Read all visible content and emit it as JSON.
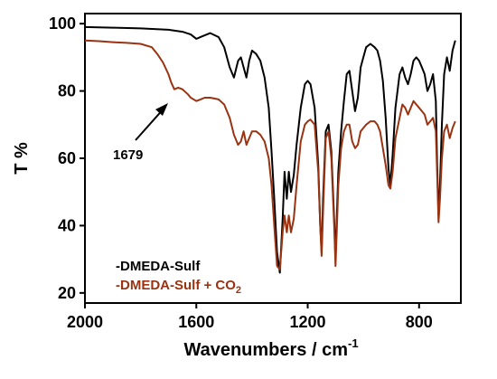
{
  "chart_data": {
    "type": "line",
    "title": "",
    "xlabel": "Wavenumbers / cm",
    "xlabel_sup": "-1",
    "ylabel": "T %",
    "xlim": [
      2000,
      650
    ],
    "ylim": [
      17,
      103
    ],
    "x_reversed": true,
    "x_ticks": [
      2000,
      1600,
      1200,
      800
    ],
    "y_ticks": [
      20,
      40,
      60,
      80,
      100
    ],
    "grid": false,
    "legend_placement": "bottom-left",
    "annotation": {
      "text": "1679",
      "x": 1679,
      "y": 79
    },
    "series": [
      {
        "name": "-DMEDA-Sulf",
        "color": "#000000",
        "x": [
          2000,
          1900,
          1800,
          1700,
          1650,
          1620,
          1600,
          1580,
          1550,
          1520,
          1500,
          1480,
          1465,
          1450,
          1440,
          1430,
          1420,
          1410,
          1400,
          1385,
          1370,
          1355,
          1340,
          1330,
          1320,
          1310,
          1300,
          1290,
          1283,
          1275,
          1268,
          1260,
          1250,
          1240,
          1225,
          1210,
          1200,
          1190,
          1175,
          1162,
          1155,
          1150,
          1145,
          1135,
          1125,
          1115,
          1105,
          1100,
          1095,
          1090,
          1080,
          1070,
          1060,
          1050,
          1040,
          1030,
          1020,
          1010,
          1000,
          990,
          975,
          960,
          950,
          940,
          930,
          920,
          910,
          903,
          895,
          885,
          870,
          860,
          850,
          840,
          830,
          820,
          810,
          800,
          790,
          780,
          770,
          760,
          750,
          740,
          735,
          730,
          725,
          718,
          710,
          700,
          690,
          680,
          670
        ],
        "y": [
          99,
          98.8,
          98.6,
          98.2,
          97.6,
          96.8,
          95.5,
          96.2,
          97.2,
          96,
          93,
          87,
          84,
          89,
          90,
          87,
          84,
          89,
          92,
          91,
          89,
          84,
          75,
          62,
          48,
          32,
          26,
          42,
          56,
          48,
          56,
          50,
          55,
          64,
          75,
          82,
          83,
          82,
          75,
          58,
          40,
          32,
          48,
          68,
          70,
          62,
          42,
          30,
          44,
          56,
          68,
          77,
          85,
          86,
          80,
          74,
          78,
          87,
          90,
          93,
          94,
          93,
          92,
          89,
          83,
          72,
          57,
          52,
          61,
          75,
          85,
          87,
          84,
          82,
          85,
          89,
          90,
          89,
          87,
          85,
          80,
          82,
          85,
          77,
          58,
          43,
          52,
          70,
          85,
          90,
          86,
          92,
          95
        ]
      },
      {
        "name": "-DMEDA-Sulf + CO",
        "name_sub": "2",
        "color": "#993311",
        "x": [
          2000,
          1950,
          1900,
          1850,
          1800,
          1760,
          1740,
          1720,
          1700,
          1690,
          1679,
          1665,
          1650,
          1630,
          1620,
          1600,
          1585,
          1570,
          1550,
          1520,
          1500,
          1480,
          1465,
          1450,
          1440,
          1430,
          1420,
          1410,
          1400,
          1385,
          1370,
          1355,
          1340,
          1330,
          1320,
          1310,
          1300,
          1290,
          1283,
          1275,
          1268,
          1260,
          1250,
          1240,
          1225,
          1210,
          1200,
          1190,
          1175,
          1162,
          1155,
          1150,
          1145,
          1135,
          1125,
          1115,
          1105,
          1100,
          1095,
          1090,
          1080,
          1070,
          1060,
          1050,
          1040,
          1030,
          1020,
          1010,
          1000,
          990,
          975,
          960,
          950,
          940,
          930,
          920,
          910,
          903,
          895,
          885,
          870,
          860,
          850,
          840,
          830,
          820,
          810,
          800,
          790,
          780,
          770,
          760,
          750,
          740,
          735,
          730,
          725,
          718,
          710,
          700,
          690,
          680,
          670
        ],
        "y": [
          95,
          94.8,
          94.5,
          94.3,
          94,
          93,
          91,
          88.5,
          85,
          82.5,
          80.5,
          81,
          80.5,
          79,
          78,
          77,
          77.5,
          78,
          78,
          77.5,
          76,
          72,
          67,
          64,
          65,
          68,
          64,
          66,
          68,
          68,
          67,
          65,
          60,
          52,
          40,
          28,
          27,
          38,
          43,
          38,
          43,
          38,
          42,
          52,
          65,
          70,
          71,
          71.5,
          70,
          56,
          40,
          31,
          44,
          66,
          68,
          60,
          40,
          28,
          40,
          52,
          63,
          68,
          70,
          70,
          65,
          63,
          64,
          68,
          69,
          70,
          71,
          71,
          70,
          68,
          63,
          58,
          52,
          51,
          56,
          66,
          72,
          76,
          75,
          73,
          75,
          77,
          76,
          75,
          74,
          73,
          70,
          71,
          72,
          68,
          55,
          41,
          48,
          60,
          68,
          70,
          66,
          69,
          71
        ]
      }
    ]
  }
}
